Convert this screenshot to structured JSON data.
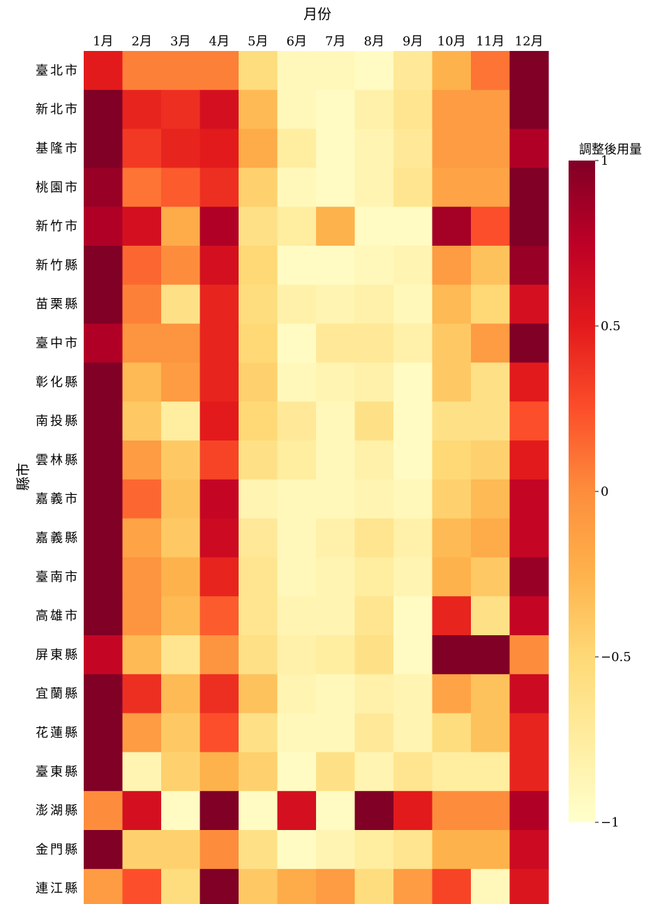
{
  "chart_data": {
    "type": "heatmap",
    "title": "",
    "xlabel": "月份",
    "ylabel": "縣市",
    "x_tick_position": "top",
    "colormap": "YlOrRd",
    "colorbar": {
      "label": "調整後用量",
      "range": [
        -1,
        1
      ],
      "ticks": [
        "1",
        "0.5",
        "0",
        "−0.5",
        "−1"
      ],
      "tick_values": [
        1,
        0.5,
        0,
        -0.5,
        -1
      ]
    },
    "columns": [
      "1月",
      "2月",
      "3月",
      "4月",
      "5月",
      "6月",
      "7月",
      "8月",
      "9月",
      "10月",
      "11月",
      "12月"
    ],
    "rows": [
      "臺北市",
      "新北市",
      "基隆市",
      "桃園市",
      "新竹市",
      "新竹縣",
      "苗栗縣",
      "臺中市",
      "彰化縣",
      "南投縣",
      "雲林縣",
      "嘉義市",
      "嘉義縣",
      "臺南市",
      "高雄市",
      "屏東縣",
      "宜蘭縣",
      "花蓮縣",
      "臺東縣",
      "澎湖縣",
      "金門縣",
      "連江縣"
    ],
    "values": [
      [
        0.5,
        0.05,
        0.05,
        0.05,
        -0.55,
        -0.9,
        -0.9,
        -0.95,
        -0.7,
        -0.25,
        0.1,
        1.0
      ],
      [
        1.0,
        0.45,
        0.4,
        0.6,
        -0.3,
        -0.9,
        -0.95,
        -0.8,
        -0.65,
        -0.1,
        -0.1,
        1.0
      ],
      [
        1.0,
        0.35,
        0.45,
        0.5,
        -0.2,
        -0.75,
        -0.95,
        -0.85,
        -0.7,
        -0.1,
        -0.1,
        0.8
      ],
      [
        0.9,
        0.1,
        0.2,
        0.4,
        -0.45,
        -0.9,
        -0.95,
        -0.85,
        -0.65,
        -0.15,
        -0.15,
        1.0
      ],
      [
        0.8,
        0.6,
        -0.2,
        0.8,
        -0.6,
        -0.75,
        -0.25,
        -0.95,
        -0.95,
        0.85,
        0.25,
        1.0
      ],
      [
        1.0,
        0.15,
        0.0,
        0.6,
        -0.5,
        -0.95,
        -0.95,
        -0.9,
        -0.85,
        -0.1,
        -0.35,
        0.9
      ],
      [
        1.0,
        0.05,
        -0.6,
        0.45,
        -0.55,
        -0.8,
        -0.85,
        -0.8,
        -0.9,
        -0.3,
        -0.5,
        0.6
      ],
      [
        0.8,
        -0.05,
        -0.05,
        0.45,
        -0.5,
        -0.95,
        -0.7,
        -0.7,
        -0.8,
        -0.4,
        -0.1,
        1.0
      ],
      [
        1.0,
        -0.3,
        -0.1,
        0.45,
        -0.45,
        -0.9,
        -0.85,
        -0.8,
        -0.95,
        -0.4,
        -0.6,
        0.5
      ],
      [
        1.0,
        -0.4,
        -0.75,
        0.5,
        -0.5,
        -0.7,
        -0.9,
        -0.6,
        -0.95,
        -0.6,
        -0.6,
        0.25
      ],
      [
        1.0,
        -0.1,
        -0.4,
        0.3,
        -0.6,
        -0.75,
        -0.9,
        -0.8,
        -0.95,
        -0.5,
        -0.45,
        0.5
      ],
      [
        1.0,
        0.15,
        -0.35,
        0.7,
        -0.85,
        -0.9,
        -0.9,
        -0.85,
        -0.9,
        -0.45,
        -0.3,
        0.7
      ],
      [
        1.0,
        -0.15,
        -0.4,
        0.65,
        -0.7,
        -0.9,
        -0.8,
        -0.65,
        -0.8,
        -0.3,
        -0.2,
        0.7
      ],
      [
        1.0,
        -0.05,
        -0.25,
        0.45,
        -0.65,
        -0.9,
        -0.85,
        -0.75,
        -0.85,
        -0.25,
        -0.4,
        0.9
      ],
      [
        1.0,
        -0.05,
        -0.3,
        0.2,
        -0.65,
        -0.85,
        -0.85,
        -0.65,
        -0.95,
        0.45,
        -0.6,
        0.7
      ],
      [
        0.7,
        -0.3,
        -0.65,
        -0.05,
        -0.6,
        -0.8,
        -0.75,
        -0.6,
        -0.95,
        1.0,
        1.0,
        0.0
      ],
      [
        1.0,
        0.4,
        -0.3,
        0.4,
        -0.35,
        -0.85,
        -0.9,
        -0.8,
        -0.85,
        -0.15,
        -0.35,
        0.65
      ],
      [
        1.0,
        -0.1,
        -0.4,
        0.25,
        -0.6,
        -0.9,
        -0.9,
        -0.7,
        -0.85,
        -0.55,
        -0.35,
        0.45
      ],
      [
        1.0,
        -0.85,
        -0.45,
        -0.25,
        -0.45,
        -0.95,
        -0.6,
        -0.85,
        -0.65,
        -0.75,
        -0.75,
        0.45
      ],
      [
        0.0,
        0.6,
        -0.95,
        1.0,
        -0.95,
        0.6,
        -0.95,
        1.0,
        0.5,
        0.0,
        0.0,
        0.8
      ],
      [
        1.0,
        -0.45,
        -0.45,
        0.0,
        -0.6,
        -0.95,
        -0.85,
        -0.75,
        -0.65,
        -0.25,
        -0.25,
        0.65
      ],
      [
        -0.1,
        0.25,
        -0.55,
        1.0,
        -0.4,
        -0.2,
        -0.1,
        -0.55,
        -0.1,
        0.3,
        -0.9,
        0.55
      ]
    ]
  }
}
